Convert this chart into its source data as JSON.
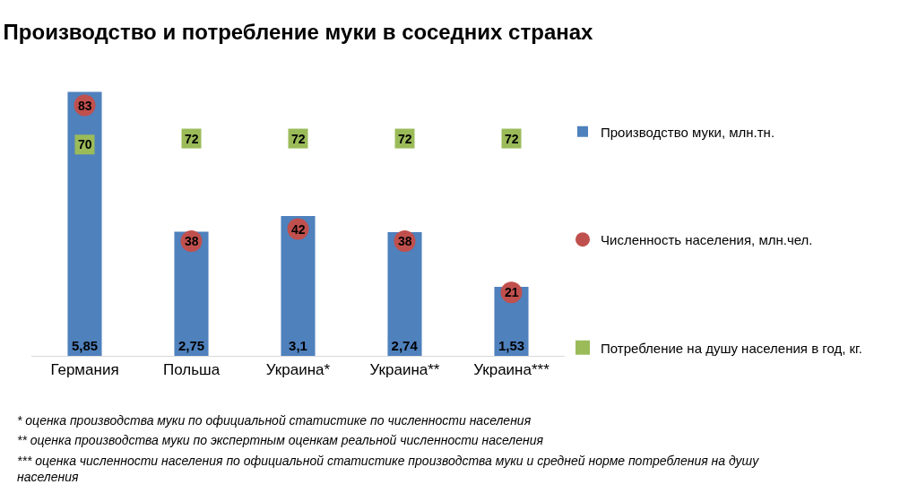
{
  "chart_data": {
    "type": "bar",
    "title": "Производство и потребление муки в соседних странах",
    "categories": [
      "Германия",
      "Польша",
      "Украина*",
      "Украина**",
      "Украина***"
    ],
    "series": [
      {
        "name": "Производство муки, млн.тн.",
        "color": "#4f81bd",
        "values": [
          5.85,
          2.75,
          3.1,
          2.74,
          1.53
        ],
        "value_labels": [
          "5,85",
          "2,75",
          "3,1",
          "2,74",
          "1,53"
        ]
      },
      {
        "name": "Численность населения, млн.чел.",
        "type": "scatter",
        "axis": "y2",
        "marker": "circle",
        "color": "#c0504d",
        "values": [
          83,
          38,
          42,
          38,
          21
        ]
      },
      {
        "name": "Потребление на душу населения в год, кг.",
        "type": "scatter",
        "axis": "y2",
        "marker": "square",
        "color": "#9bbb59",
        "values": [
          70,
          72,
          72,
          72,
          72
        ]
      }
    ],
    "tick_labels": "x",
    "grid": false,
    "legend": "right",
    "data_labels": true,
    "annotations": [
      "* оценка производства муки по официальной статистике по численности населения",
      "** оценка производства муки по экспертным оценкам реальной численности населения",
      "*** оценка численности населения по официальной статистике производства муки и средней норме потребления на душу\nнаселения"
    ]
  }
}
